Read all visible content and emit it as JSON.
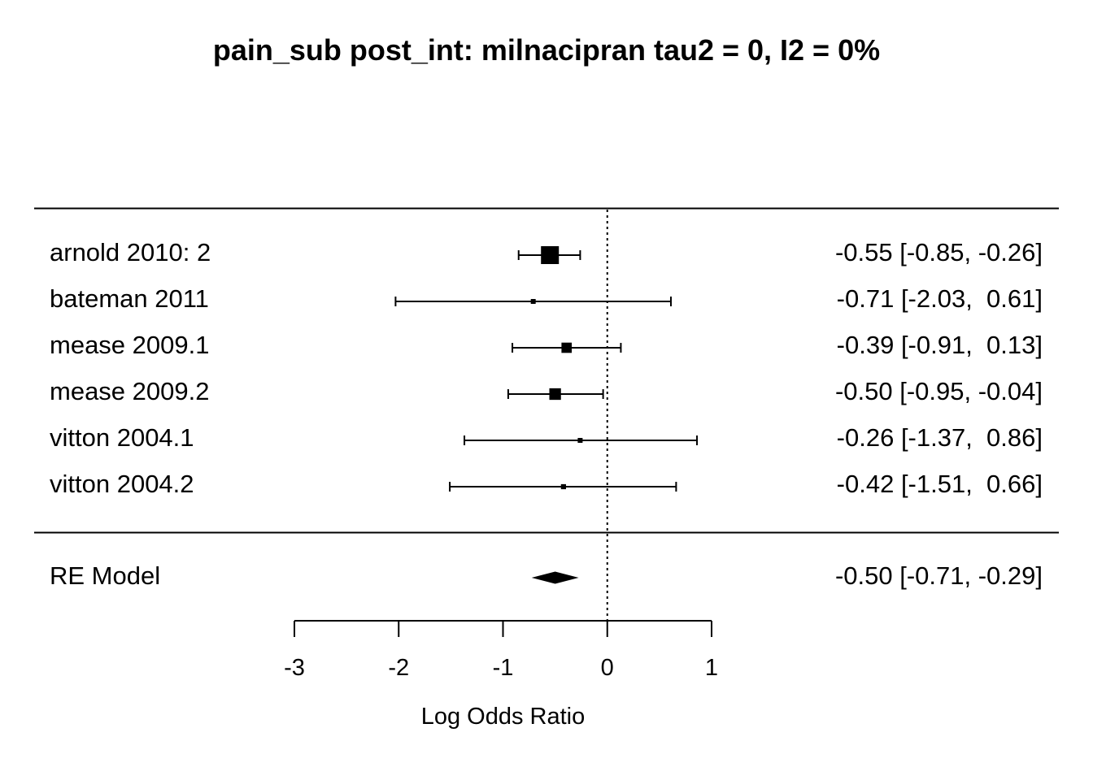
{
  "chart_data": {
    "type": "forest",
    "title": "pain_sub post_int: milnacipran tau2 = 0, I2 = 0%",
    "xlabel": "Log Odds Ratio",
    "xlim": [
      -3,
      1
    ],
    "xticks": [
      -3,
      -2,
      -1,
      0,
      1
    ],
    "xtick_labels": [
      "-3",
      "-2",
      "-1",
      "0",
      "1"
    ],
    "reference_line": 0,
    "studies": [
      {
        "label": "arnold 2010: 2",
        "estimate": -0.55,
        "lower": -0.85,
        "upper": -0.26,
        "weight": 1.0,
        "ci_text": "-0.55 [-0.85, -0.26]"
      },
      {
        "label": "bateman 2011",
        "estimate": -0.71,
        "lower": -2.03,
        "upper": 0.61,
        "weight": 0.06,
        "ci_text": "-0.71 [-2.03,  0.61]"
      },
      {
        "label": "mease 2009.1",
        "estimate": -0.39,
        "lower": -0.91,
        "upper": 0.13,
        "weight": 0.33,
        "ci_text": "-0.39 [-0.91,  0.13]"
      },
      {
        "label": "mease 2009.2",
        "estimate": -0.5,
        "lower": -0.95,
        "upper": -0.04,
        "weight": 0.42,
        "ci_text": "-0.50 [-0.95, -0.04]"
      },
      {
        "label": "vitton 2004.1",
        "estimate": -0.26,
        "lower": -1.37,
        "upper": 0.86,
        "weight": 0.07,
        "ci_text": "-0.26 [-1.37,  0.86]"
      },
      {
        "label": "vitton 2004.2",
        "estimate": -0.42,
        "lower": -1.51,
        "upper": 0.66,
        "weight": 0.08,
        "ci_text": "-0.42 [-1.51,  0.66]"
      }
    ],
    "summary": {
      "label": "RE Model",
      "estimate": -0.5,
      "lower": -0.71,
      "upper": -0.29,
      "ci_text": "-0.50 [-0.71, -0.29]"
    },
    "colors": {
      "ink": "#000000",
      "background": "#ffffff"
    }
  }
}
